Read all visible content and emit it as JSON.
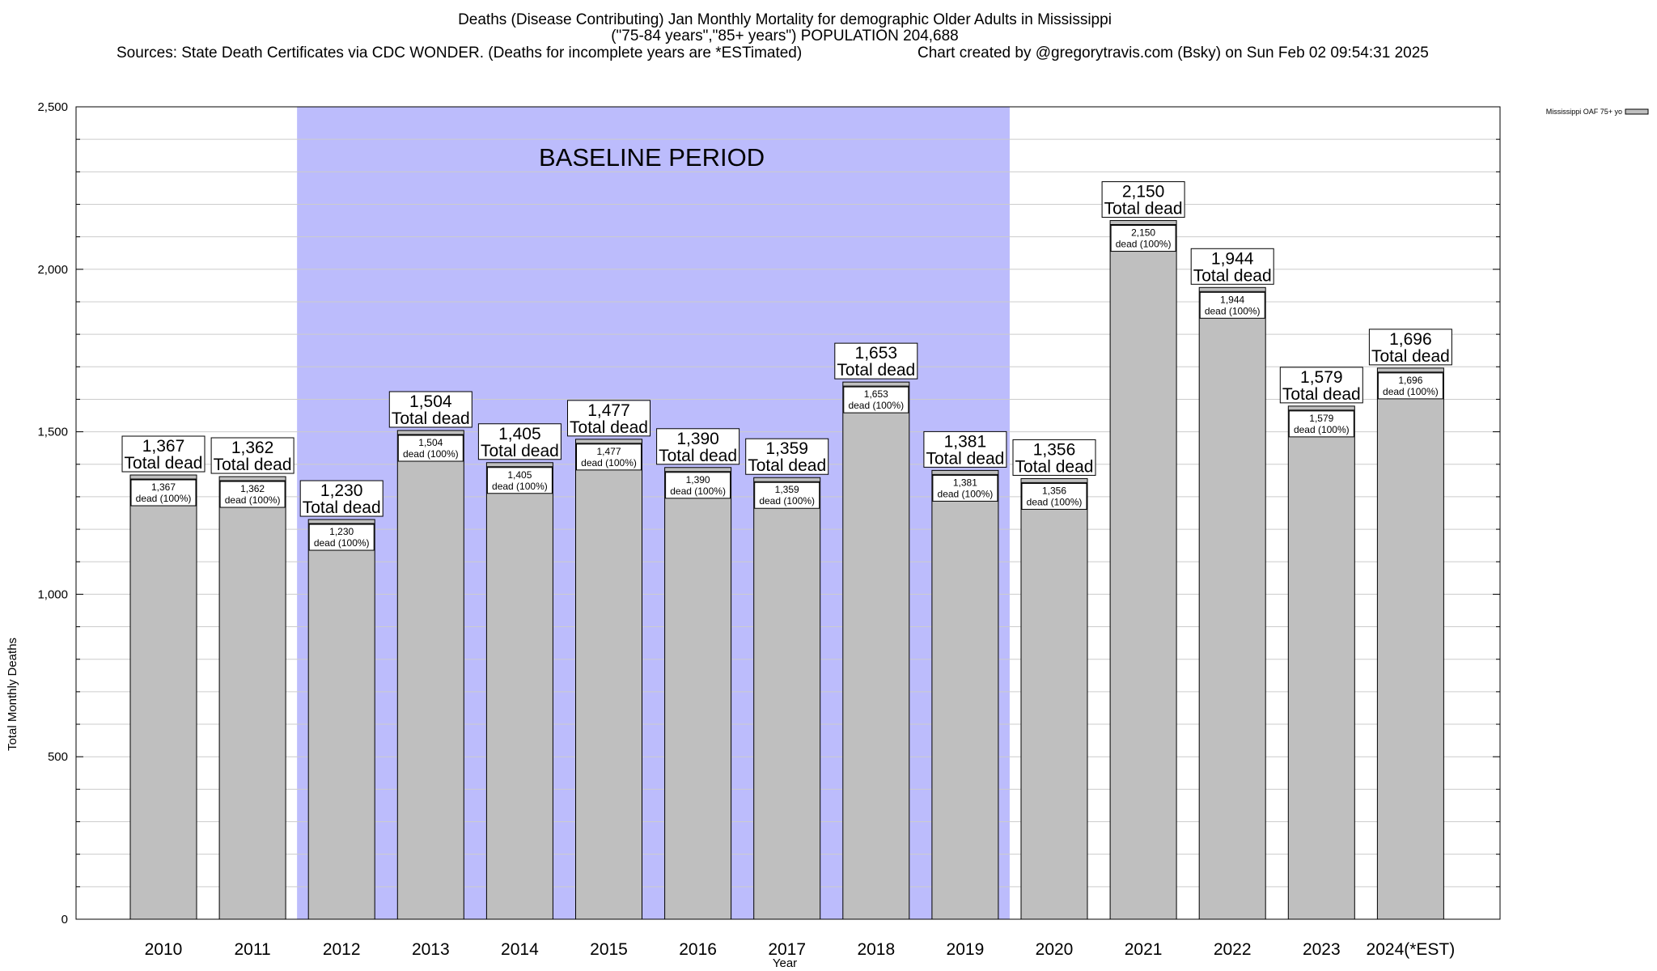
{
  "title_lines": [
    "Deaths (Disease Contributing) Jan Monthly Mortality for demographic Older Adults in Mississippi",
    "(\"75-84 years\",\"85+ years\") POPULATION 204,688"
  ],
  "sources_text": "Sources: State Death Certificates via CDC WONDER. (Deaths for incomplete years are *ESTimated)",
  "credit_text": "Chart created by @gregorytravis.com (Bsky) on Sun Feb 02 09:54:31 2025",
  "colors": {
    "bar_fill": "#bfbfbf",
    "baseline_fill": "#bcbcfc",
    "grid": "#cccccc"
  },
  "chart_data": {
    "type": "bar",
    "title": "Deaths (Disease Contributing) Jan Monthly Mortality for demographic Older Adults in Mississippi",
    "xlabel": "Year",
    "ylabel": "Total Monthly Deaths",
    "ylim": [
      0,
      2500
    ],
    "y_ticks": [
      0,
      500,
      1000,
      1500,
      2000,
      2500
    ],
    "y_tick_labels": [
      "0",
      "500",
      "1,000",
      "1,500",
      "2,000",
      "2,500"
    ],
    "categories": [
      "2010",
      "2011",
      "2012",
      "2013",
      "2014",
      "2015",
      "2016",
      "2017",
      "2018",
      "2019",
      "2020",
      "2021",
      "2022",
      "2023",
      "2024(*EST)"
    ],
    "series": [
      {
        "name": "Mississippi OAF 75+ yo",
        "values": [
          1367,
          1362,
          1230,
          1504,
          1405,
          1477,
          1390,
          1359,
          1653,
          1381,
          1356,
          2150,
          1944,
          1579,
          1696
        ]
      }
    ],
    "top_labels": [
      "1,367",
      "1,362",
      "1,230",
      "1,504",
      "1,405",
      "1,477",
      "1,390",
      "1,359",
      "1,653",
      "1,381",
      "1,356",
      "2,150",
      "1,944",
      "1,579",
      "1,696"
    ],
    "top_label_caption": "Total dead",
    "inner_label_caption": "dead (100%)",
    "baseline": {
      "label": "BASELINE PERIOD",
      "start": "2012",
      "end": "2019"
    },
    "legend": {
      "label": "Mississippi OAF 75+ yo",
      "position": "top-right"
    },
    "grid": true
  }
}
